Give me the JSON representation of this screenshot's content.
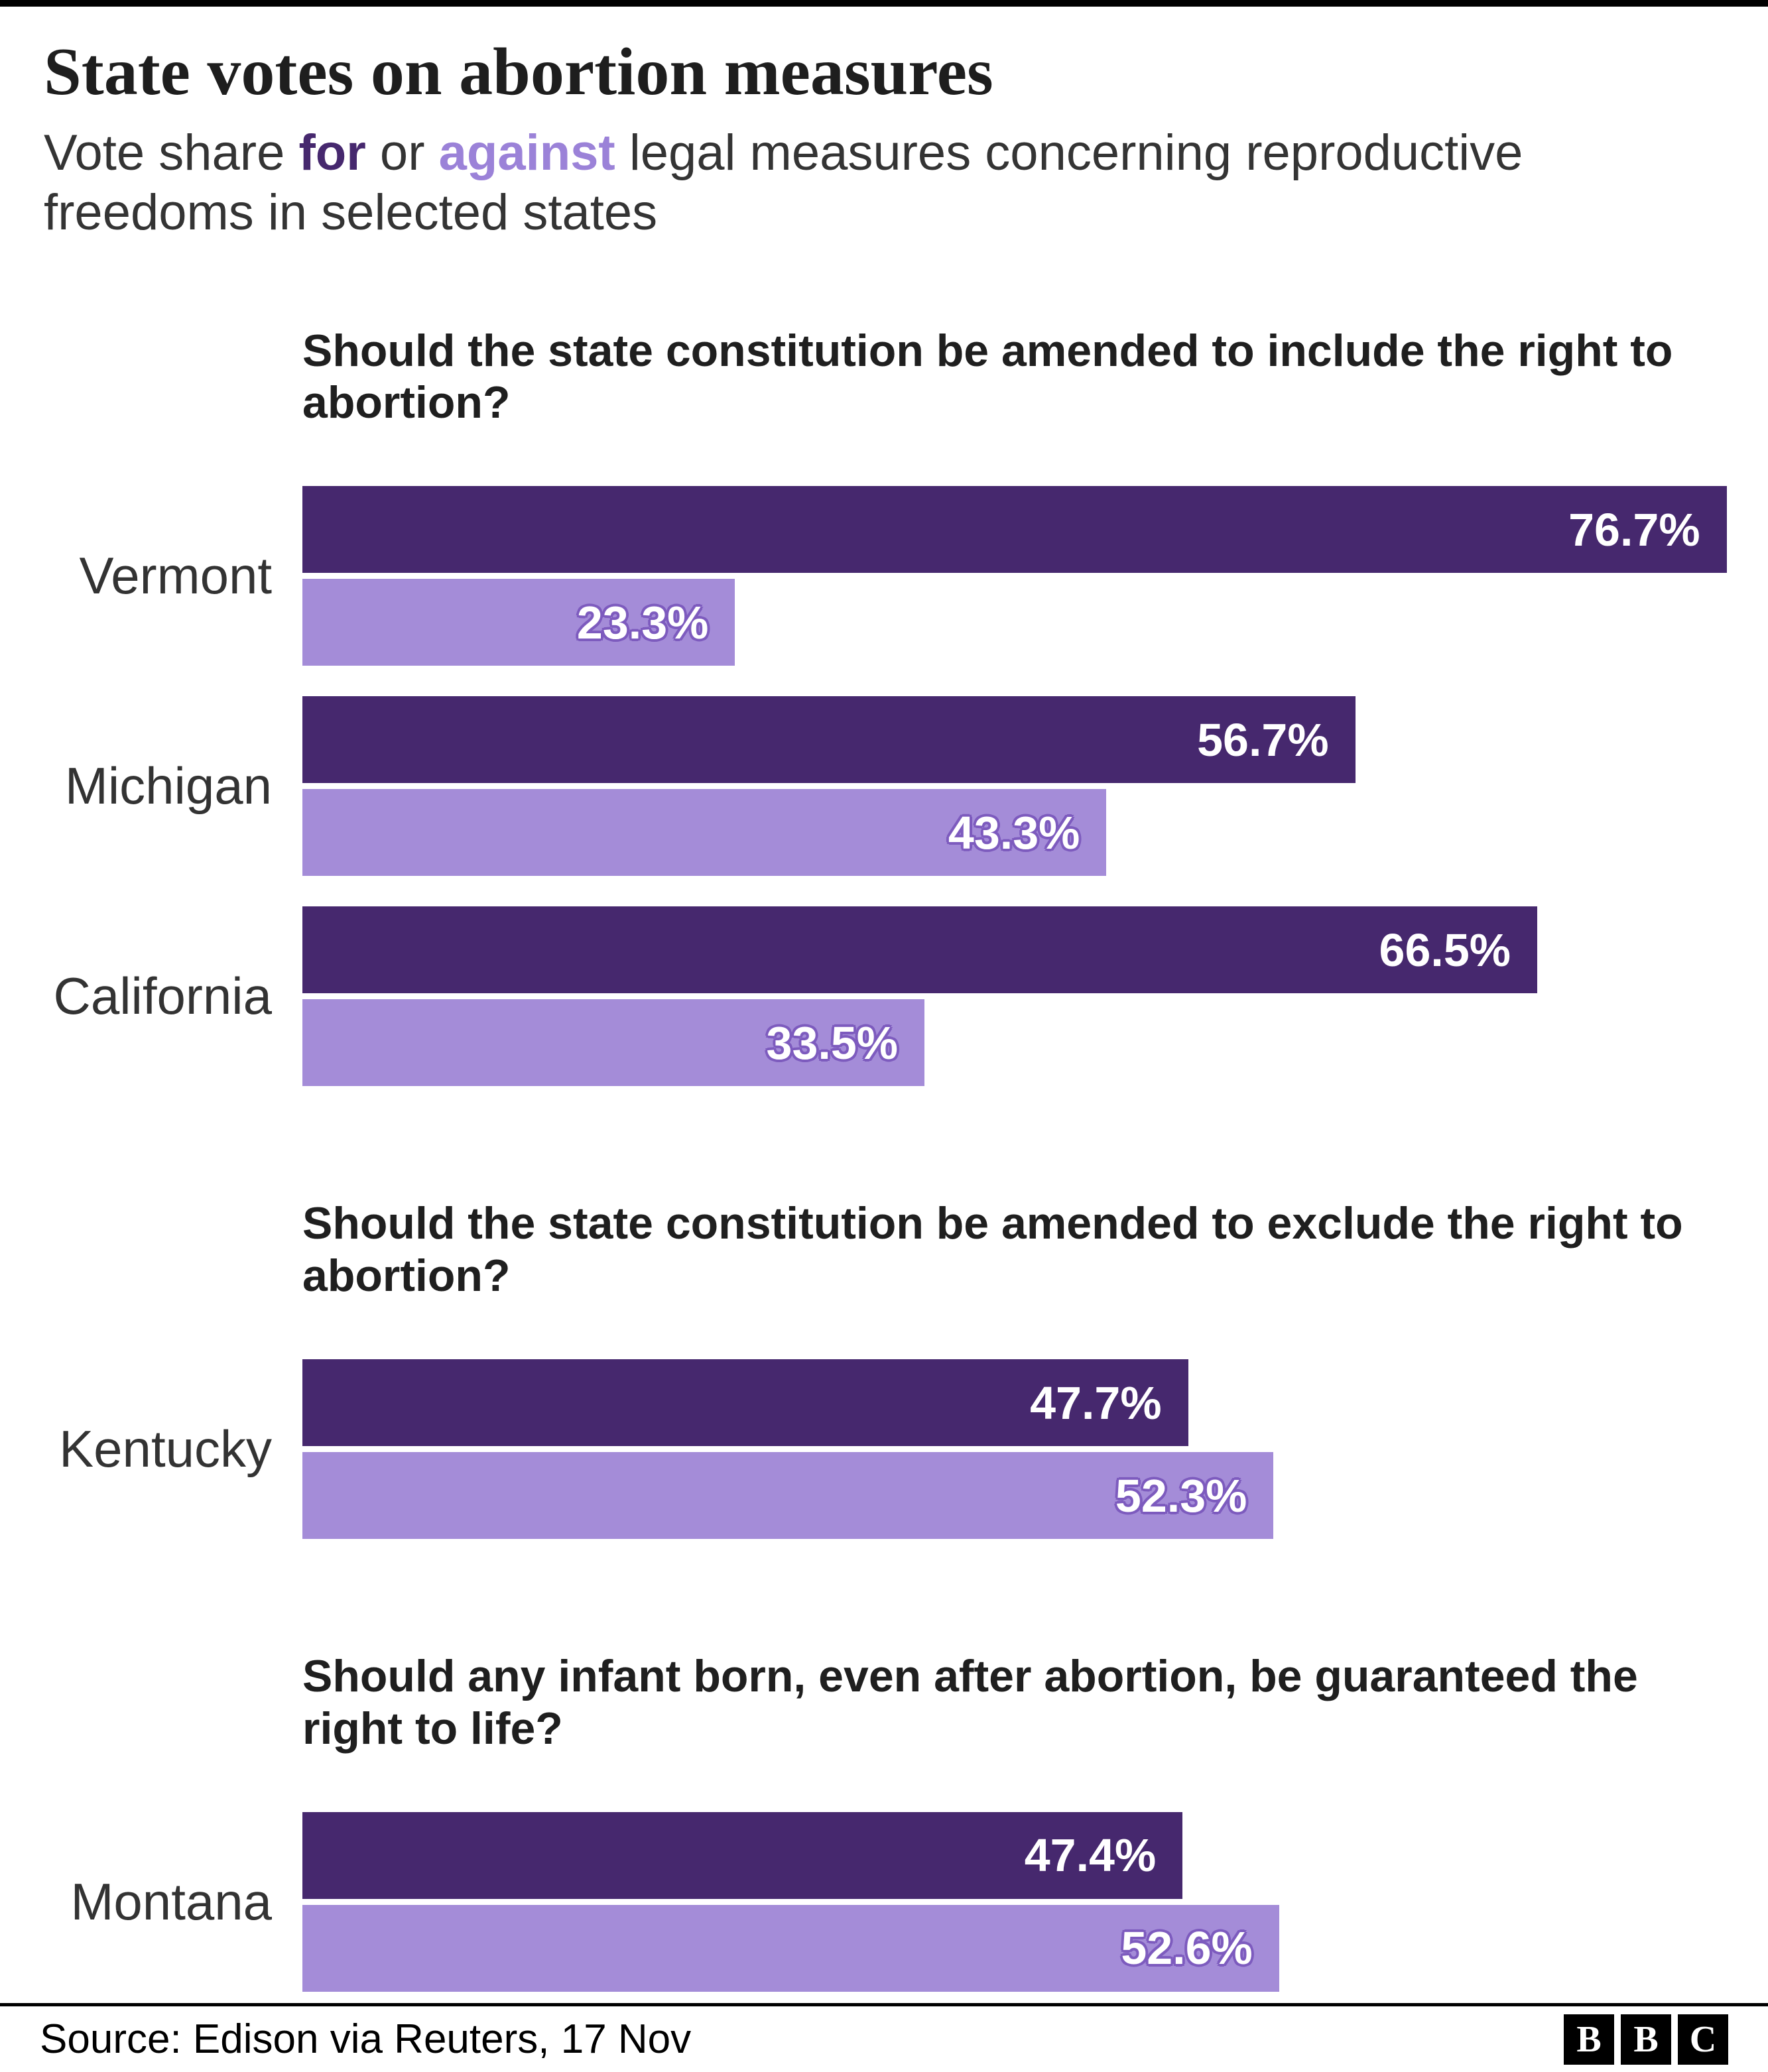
{
  "title": "State votes on abortion measures",
  "subtitle": {
    "prefix": "Vote share ",
    "for_word": "for",
    "middle": " or ",
    "against_word": "against",
    "suffix": " legal measures concerning reproductive freedoms in selected states"
  },
  "colors": {
    "for": "#46286e",
    "against": "#a48cd8",
    "against_label_outline": "#7d5bbe",
    "subtitle_for": "#46286e",
    "subtitle_against": "#9b82d8"
  },
  "chart_data": {
    "type": "bar",
    "orientation": "horizontal",
    "unit": "%",
    "xlim": [
      0,
      100
    ],
    "series_names": [
      "for",
      "against"
    ],
    "sections": [
      {
        "question": "Should the state constitution be amended to include the right to abortion?",
        "rows": [
          {
            "state": "Vermont",
            "for": 76.7,
            "against": 23.3
          },
          {
            "state": "Michigan",
            "for": 56.7,
            "against": 43.3
          },
          {
            "state": "California",
            "for": 66.5,
            "against": 33.5
          }
        ]
      },
      {
        "question": "Should the state constitution be amended to exclude the right to abortion?",
        "rows": [
          {
            "state": "Kentucky",
            "for": 47.7,
            "against": 52.3
          }
        ]
      },
      {
        "question": "Should any infant born, even after abortion, be guaranteed the right to life?",
        "rows": [
          {
            "state": "Montana",
            "for": 47.4,
            "against": 52.6
          }
        ]
      }
    ]
  },
  "footer": {
    "source": "Source: Edison via Reuters, 17 Nov",
    "logo": [
      "B",
      "B",
      "C"
    ]
  }
}
